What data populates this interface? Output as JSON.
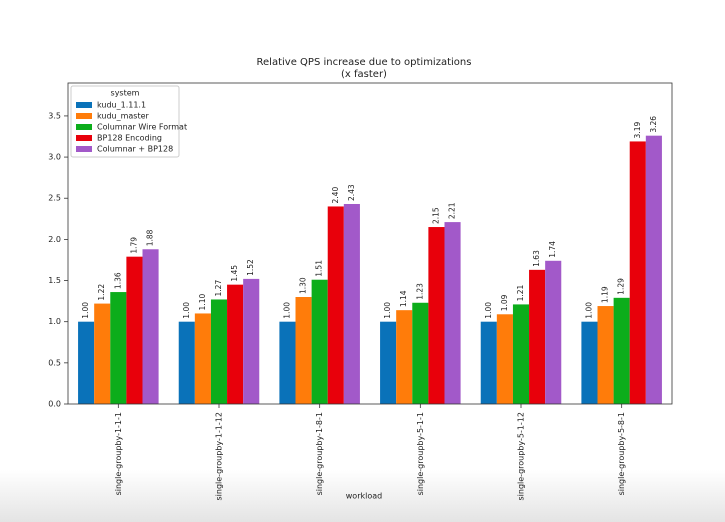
{
  "chart_data": {
    "type": "bar",
    "title": "Relative QPS increase due to optimizations",
    "subtitle": "(x faster)",
    "x_label": "workload",
    "legend_title": "system",
    "legend": "upper left",
    "categories": [
      "single-groupby-1-1-1",
      "single-groupby-1-1-12",
      "single-groupby-1-8-1",
      "single-groupby-5-1-1",
      "single-groupby-5-1-12",
      "single-groupby-5-8-1"
    ],
    "series": [
      {
        "name": "kudu_1.11.1",
        "color": "#0a72b9",
        "values": [
          1,
          1,
          1,
          1,
          1,
          1
        ],
        "value_labels": [
          "1.00",
          "1.00",
          "1.00",
          "1.00",
          "1.00",
          "1.00"
        ]
      },
      {
        "name": "kudu_master",
        "color": "#ff7c0a",
        "values": [
          1.22,
          1.1,
          1.3,
          1.14,
          1.09,
          1.19
        ],
        "value_labels": [
          "1.22",
          "1.10",
          "1.30",
          "1.14",
          "1.09",
          "1.19"
        ]
      },
      {
        "name": "Columnar Wire Format",
        "color": "#0cad1b",
        "values": [
          1.36,
          1.27,
          1.51,
          1.23,
          1.21,
          1.29
        ],
        "value_labels": [
          "1.36",
          "1.27",
          "1.51",
          "1.23",
          "1.21",
          "1.29"
        ]
      },
      {
        "name": "BP128 Encoding",
        "color": "#e8000b",
        "values": [
          1.79,
          1.45,
          2.4,
          2.15,
          1.63,
          3.19
        ],
        "value_labels": [
          "1.79",
          "1.45",
          "2.40",
          "2.15",
          "1.63",
          "3.19"
        ]
      },
      {
        "name": "Columnar + BP128",
        "color": "#a259c9",
        "values": [
          1.88,
          1.52,
          2.43,
          2.21,
          1.74,
          3.26
        ],
        "value_labels": [
          "1.88",
          "1.52",
          "2.43",
          "2.21",
          "1.74",
          "3.26"
        ]
      }
    ],
    "ylim": [
      0,
      3.9
    ],
    "yticks": [
      {
        "value": 0,
        "label": "0.0"
      },
      0.5,
      {
        "value": 1,
        "label": "1.0"
      },
      1.5,
      {
        "value": 2,
        "label": "2.0"
      },
      2.5,
      {
        "value": 3,
        "label": "3.0"
      },
      3.5
    ]
  }
}
